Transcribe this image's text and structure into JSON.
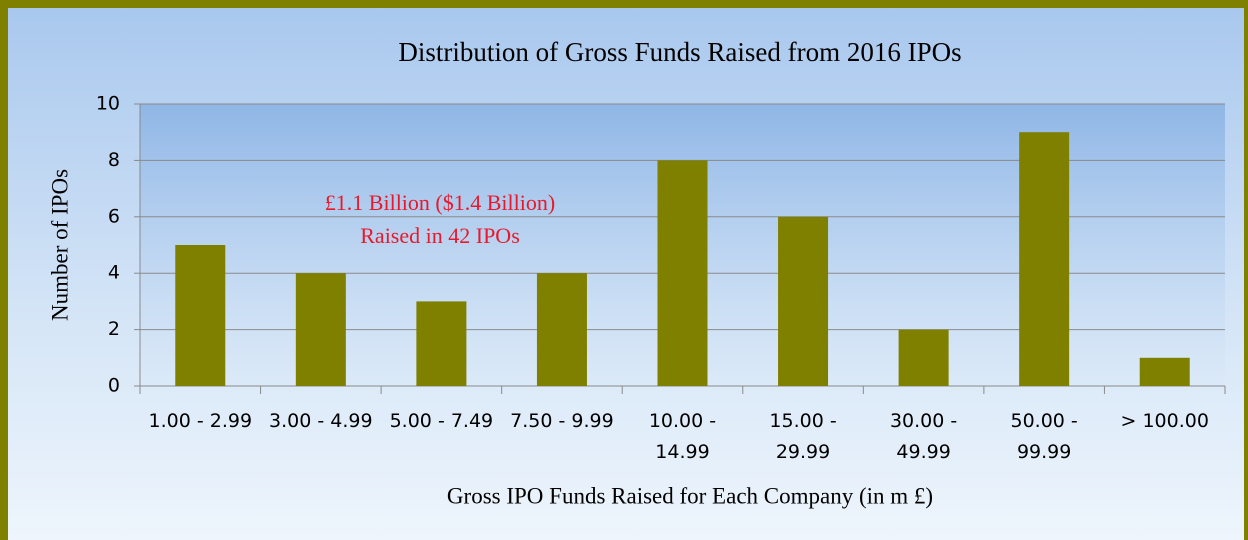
{
  "chart_data": {
    "type": "bar",
    "title": "Distribution of Gross Funds Raised from 2016  IPOs",
    "x_label": "Gross IPO Funds Raised for Each Company (in m £)",
    "y_label": "Number of IPOs",
    "annotations": [
      "£1.1 Billion ($1.4 Billion)",
      "Raised in 42 IPOs"
    ],
    "categories": [
      "1.00 - 2.99",
      "3.00 - 4.99",
      "5.00 - 7.49",
      "7.50 - 9.99",
      "10.00 - 14.99",
      "15.00 - 29.99",
      "30.00 - 49.99",
      "50.00 - 99.99",
      "> 100.00"
    ],
    "values": [
      5,
      4,
      3,
      4,
      8,
      6,
      2,
      9,
      1
    ],
    "color": "#7f7f00",
    "ylim": [
      0,
      10
    ],
    "yticks": [
      0,
      2,
      4,
      6,
      8,
      10
    ],
    "grid": true
  }
}
